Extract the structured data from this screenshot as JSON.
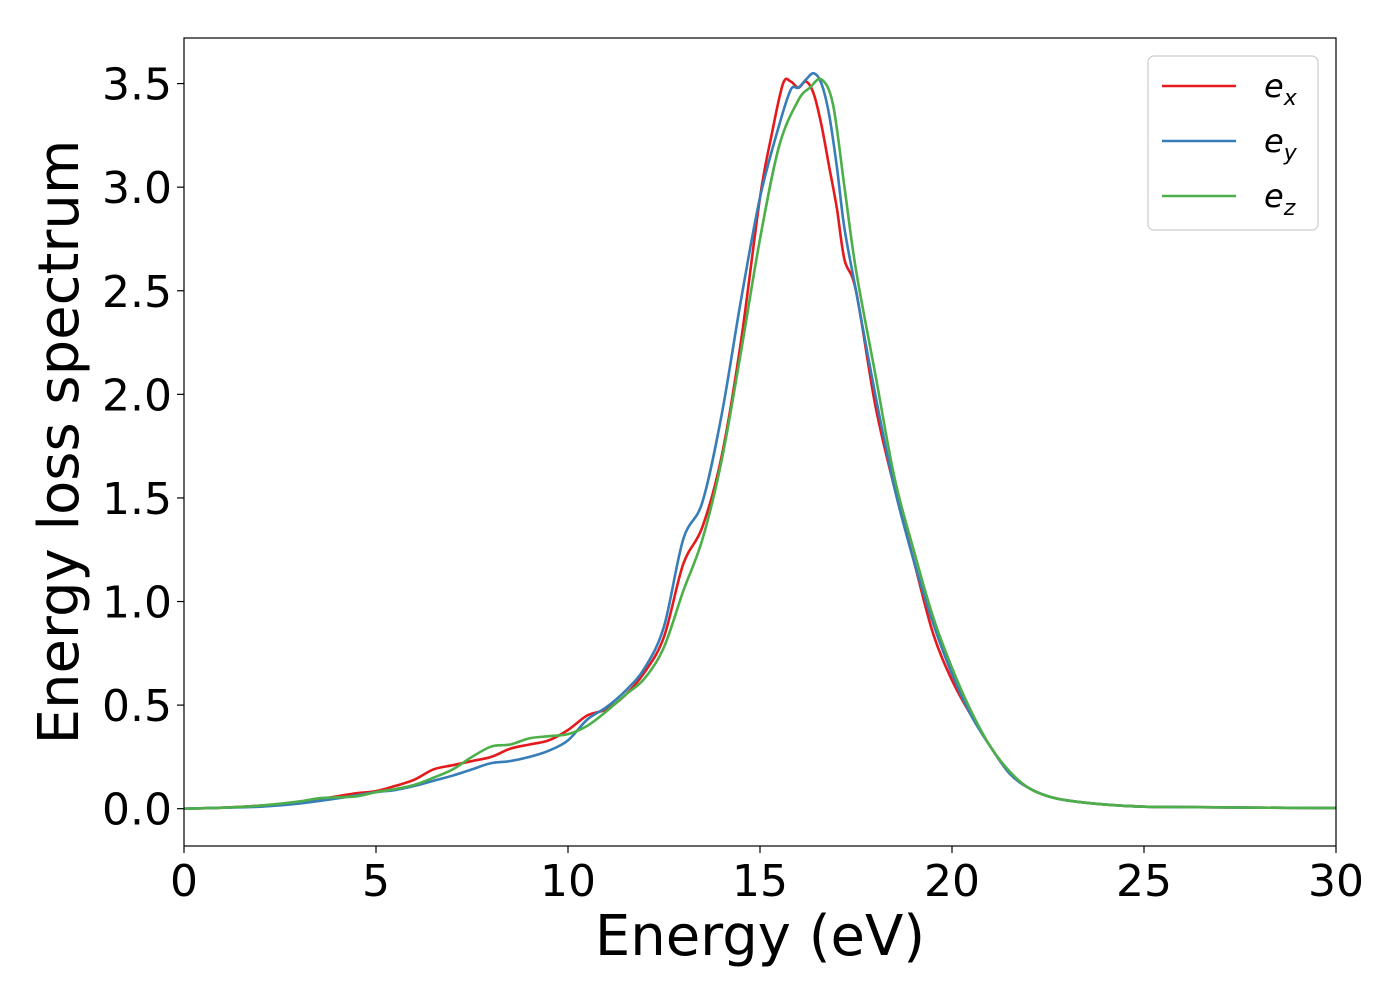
{
  "chart_data": {
    "type": "line",
    "xlabel": "Energy (eV)",
    "ylabel": "Energy loss spectrum",
    "xlim": [
      0,
      30
    ],
    "ylim": [
      -0.18,
      3.72
    ],
    "x_ticks": [
      "0",
      "5",
      "10",
      "15",
      "20",
      "25",
      "30"
    ],
    "y_ticks": [
      "0.0",
      "0.5",
      "1.0",
      "1.5",
      "2.0",
      "2.5",
      "3.0",
      "3.5"
    ],
    "grid": false,
    "legend_position": "top-right",
    "series": [
      {
        "name": "e",
        "subscript": "x",
        "color": "#e41a1c",
        "x": [
          0,
          1,
          2,
          3,
          4,
          4.5,
          5,
          5.5,
          6,
          6.5,
          7,
          7.5,
          8,
          8.5,
          9,
          9.5,
          10,
          10.5,
          11,
          11.5,
          12,
          12.5,
          13,
          13.5,
          14,
          14.5,
          15,
          15.3,
          15.6,
          15.8,
          16,
          16.2,
          16.4,
          16.6,
          16.8,
          17,
          17.2,
          17.5,
          18,
          18.5,
          19,
          19.5,
          20,
          20.5,
          21,
          21.5,
          22,
          22.5,
          23,
          24,
          25,
          26,
          28,
          30
        ],
        "y": [
          0,
          0.005,
          0.015,
          0.03,
          0.06,
          0.075,
          0.085,
          0.11,
          0.14,
          0.19,
          0.21,
          0.23,
          0.25,
          0.29,
          0.31,
          0.33,
          0.38,
          0.45,
          0.48,
          0.55,
          0.66,
          0.83,
          1.18,
          1.36,
          1.7,
          2.25,
          2.95,
          3.25,
          3.5,
          3.51,
          3.48,
          3.51,
          3.45,
          3.3,
          3.1,
          2.9,
          2.65,
          2.5,
          1.95,
          1.55,
          1.2,
          0.85,
          0.62,
          0.45,
          0.3,
          0.17,
          0.1,
          0.06,
          0.04,
          0.02,
          0.01,
          0.008,
          0.005,
          0.003
        ]
      },
      {
        "name": "e",
        "subscript": "y",
        "color": "#377eb8",
        "x": [
          0,
          1,
          2,
          3,
          4,
          4.5,
          5,
          5.5,
          6,
          6.5,
          7,
          7.5,
          8,
          8.5,
          9,
          9.5,
          10,
          10.5,
          11,
          11.5,
          12,
          12.5,
          13,
          13.5,
          14,
          14.5,
          15,
          15.5,
          15.8,
          16,
          16.2,
          16.4,
          16.6,
          16.8,
          17,
          17.2,
          17.5,
          18,
          18.5,
          19,
          19.5,
          20,
          20.5,
          21,
          21.5,
          22,
          22.5,
          23,
          24,
          25,
          26,
          28,
          30
        ],
        "y": [
          0,
          0.005,
          0.01,
          0.025,
          0.05,
          0.065,
          0.08,
          0.09,
          0.11,
          0.135,
          0.16,
          0.19,
          0.22,
          0.23,
          0.25,
          0.28,
          0.33,
          0.43,
          0.49,
          0.57,
          0.68,
          0.88,
          1.3,
          1.48,
          1.9,
          2.45,
          2.95,
          3.3,
          3.47,
          3.48,
          3.52,
          3.55,
          3.5,
          3.35,
          3.1,
          2.8,
          2.5,
          2.0,
          1.55,
          1.2,
          0.9,
          0.65,
          0.45,
          0.3,
          0.17,
          0.1,
          0.06,
          0.04,
          0.02,
          0.01,
          0.008,
          0.005,
          0.003
        ]
      },
      {
        "name": "e",
        "subscript": "z",
        "color": "#4daf4a",
        "x": [
          0,
          1,
          2,
          3,
          3.5,
          4,
          4.5,
          5,
          5.5,
          6,
          6.5,
          7,
          7.5,
          8,
          8.5,
          9,
          9.5,
          10,
          10.5,
          11,
          11.5,
          12,
          12.5,
          13,
          13.5,
          14,
          14.5,
          15,
          15.5,
          16,
          16.3,
          16.6,
          16.9,
          17.2,
          17.5,
          18,
          18.5,
          19,
          19.5,
          20,
          20.5,
          21,
          21.5,
          22,
          22.5,
          23,
          24,
          25,
          26,
          28,
          30
        ],
        "y": [
          0,
          0.005,
          0.015,
          0.035,
          0.05,
          0.055,
          0.06,
          0.08,
          0.095,
          0.115,
          0.15,
          0.19,
          0.25,
          0.3,
          0.31,
          0.34,
          0.35,
          0.36,
          0.4,
          0.47,
          0.55,
          0.63,
          0.78,
          1.05,
          1.3,
          1.68,
          2.2,
          2.75,
          3.2,
          3.42,
          3.48,
          3.52,
          3.4,
          3.0,
          2.6,
          2.1,
          1.6,
          1.25,
          0.93,
          0.68,
          0.47,
          0.3,
          0.18,
          0.1,
          0.06,
          0.04,
          0.02,
          0.01,
          0.008,
          0.005,
          0.003
        ]
      }
    ]
  }
}
